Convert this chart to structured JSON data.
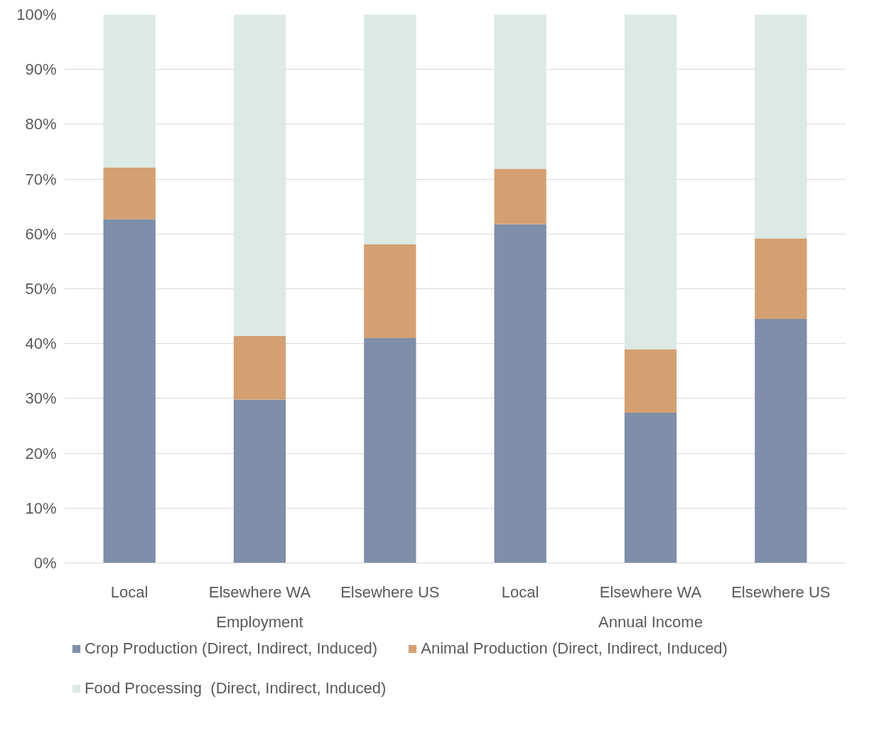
{
  "chart_data": {
    "type": "bar",
    "stacked": true,
    "categories": [
      "Local",
      "Elsewhere WA",
      "Elsewhere US",
      "Local",
      "Elsewhere WA",
      "Elsewhere US"
    ],
    "series": [
      {
        "name": "Crop Production (Direct, Indirect, Induced)",
        "color": "#7f8ea9",
        "values": [
          62.7,
          29.8,
          41.0,
          61.8,
          27.4,
          44.5
        ]
      },
      {
        "name": "Animal Production (Direct, Indirect, Induced)",
        "color": "#d4a072",
        "values": [
          9.4,
          11.6,
          17.1,
          10.1,
          11.6,
          14.7
        ]
      },
      {
        "name": "Food Processing  (Direct, Indirect, Induced)",
        "color": "#dce9e5",
        "values": [
          27.9,
          58.6,
          41.9,
          28.1,
          61.0,
          40.8
        ]
      }
    ],
    "annotations": [
      "Employment",
      "Annual Income"
    ],
    "ylim": [
      0,
      100
    ],
    "yticks": [
      {
        "value": 0,
        "label": "0%"
      },
      {
        "value": 10,
        "label": "10%"
      },
      {
        "value": 20,
        "label": "20%"
      },
      {
        "value": 30,
        "label": "30%"
      },
      {
        "value": 40,
        "label": "40%"
      },
      {
        "value": 50,
        "label": "50%"
      },
      {
        "value": 60,
        "label": "60%"
      },
      {
        "value": 70,
        "label": "70%"
      },
      {
        "value": 80,
        "label": "80%"
      },
      {
        "value": 90,
        "label": "90%"
      },
      {
        "value": 100,
        "label": "100%"
      }
    ],
    "grid": "y",
    "legend": "bottom"
  }
}
